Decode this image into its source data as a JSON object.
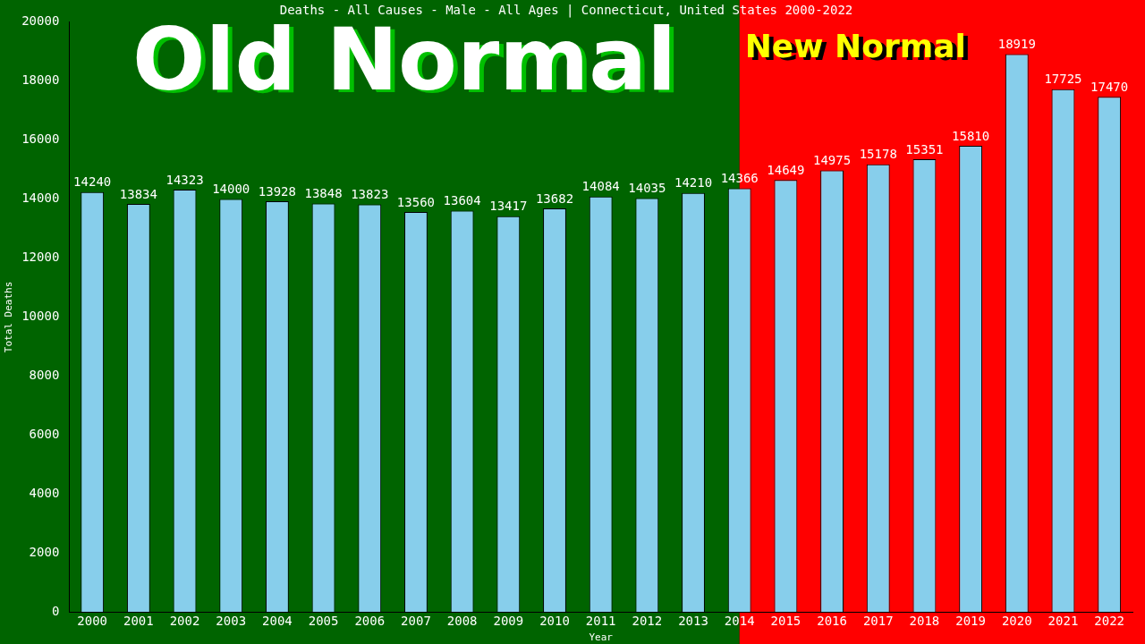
{
  "chart_data": {
    "type": "bar",
    "title": "Deaths - All Causes - Male - All Ages | Connecticut, United States 2000-2022",
    "xlabel": "Year",
    "ylabel": "Total Deaths",
    "categories": [
      "2000",
      "2001",
      "2002",
      "2003",
      "2004",
      "2005",
      "2006",
      "2007",
      "2008",
      "2009",
      "2010",
      "2011",
      "2012",
      "2013",
      "2014",
      "2015",
      "2016",
      "2017",
      "2018",
      "2019",
      "2020",
      "2021",
      "2022"
    ],
    "values": [
      14240,
      13834,
      14323,
      14000,
      13928,
      13848,
      13823,
      13560,
      13604,
      13417,
      13682,
      14084,
      14035,
      14210,
      14366,
      14649,
      14975,
      15178,
      15351,
      15810,
      18919,
      17725,
      17470
    ],
    "color": "#87ceeb",
    "data_labels": true,
    "grid": false,
    "legend": false,
    "ylim": [
      0,
      20000
    ],
    "yticks": [
      0,
      2000,
      4000,
      6000,
      8000,
      10000,
      12000,
      14000,
      16000,
      18000,
      20000
    ],
    "bands": [
      {
        "axis": "x",
        "from": "2000",
        "to": "2014",
        "label": "Old Normal",
        "color": "#006400"
      },
      {
        "axis": "x",
        "from": "2014",
        "to": "2022",
        "label": "New Normal",
        "color": "#ff0000"
      }
    ]
  }
}
